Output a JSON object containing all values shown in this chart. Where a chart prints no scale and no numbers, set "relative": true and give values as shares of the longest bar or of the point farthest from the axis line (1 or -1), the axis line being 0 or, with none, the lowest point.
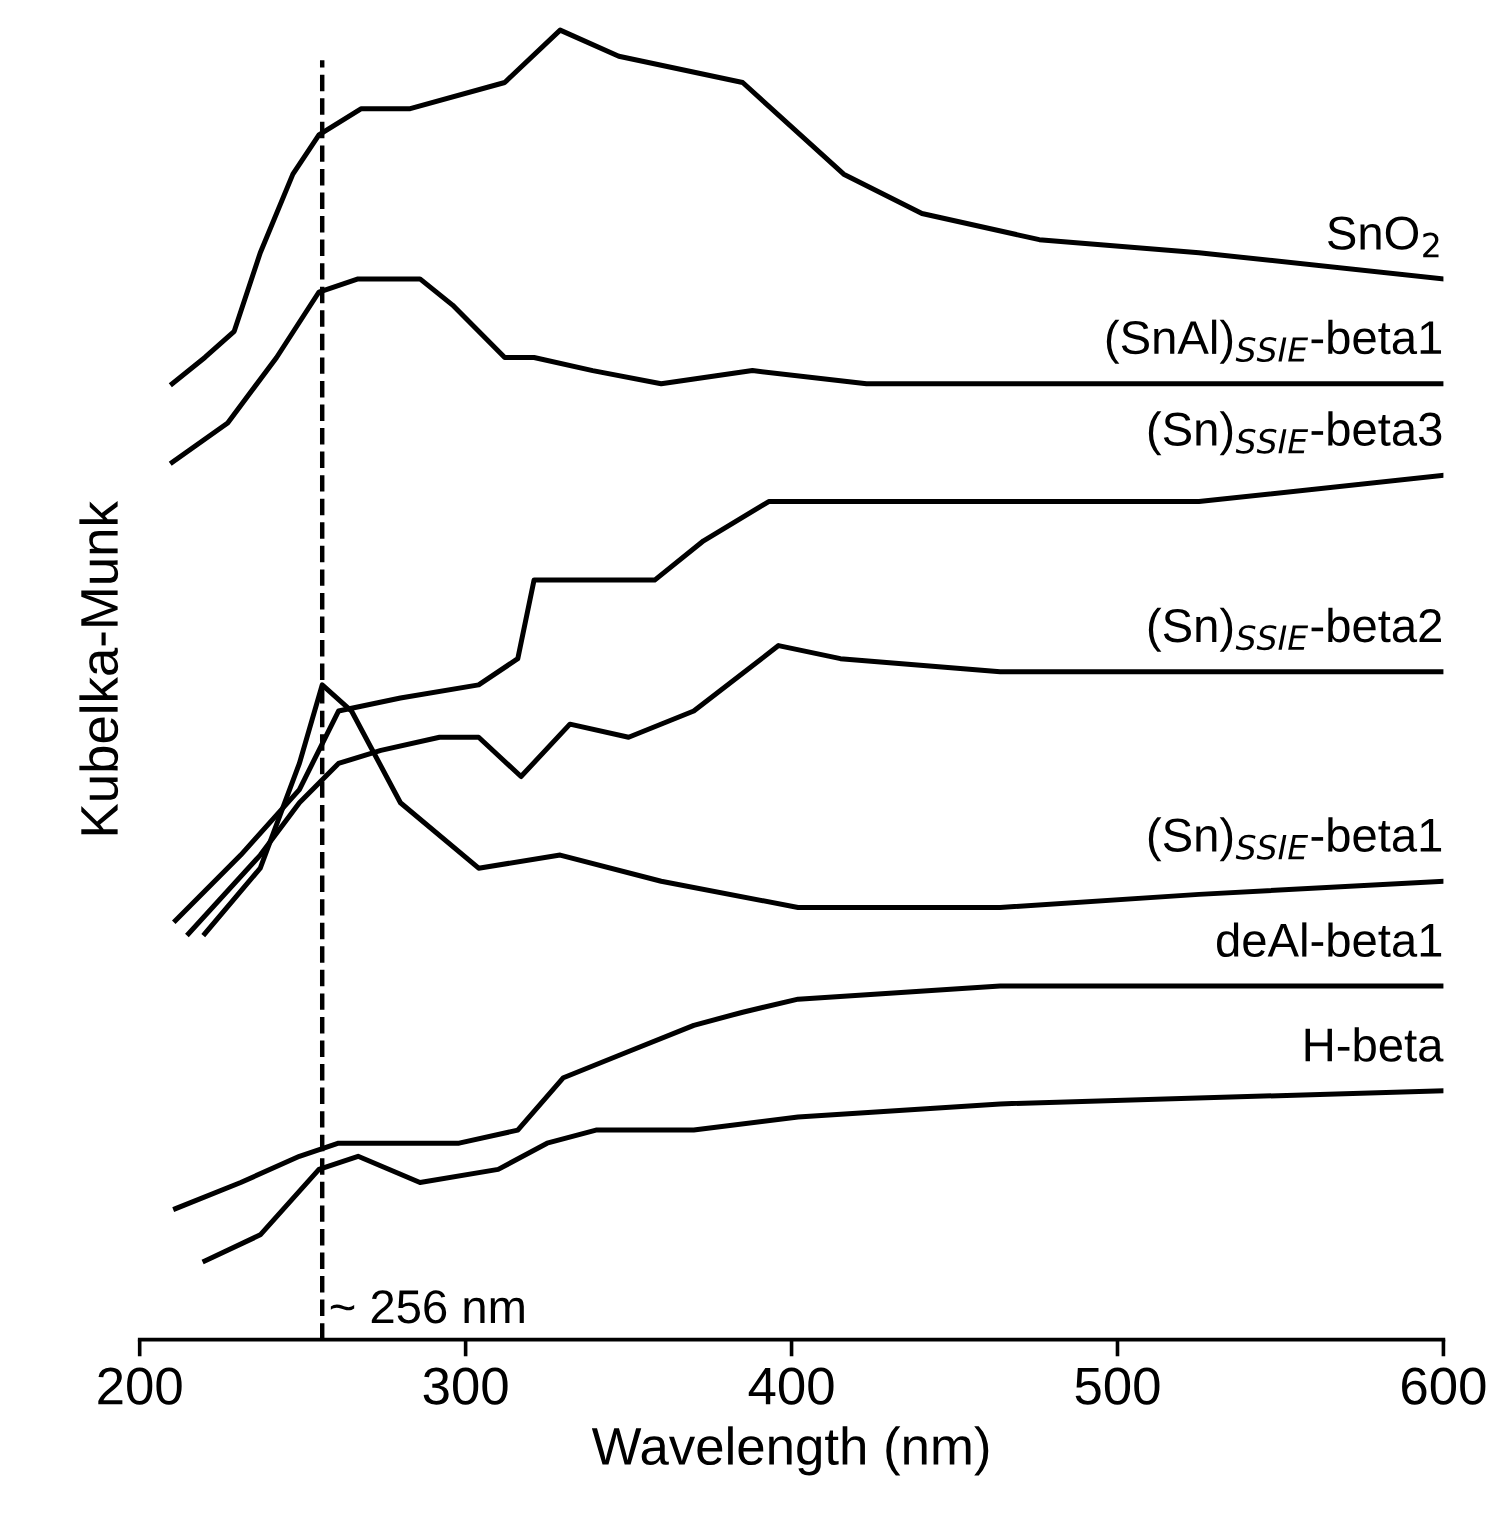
{
  "chart_data": {
    "type": "line",
    "relative": true,
    "xlabel": "Wavelength (nm)",
    "ylabel": "Kubelka-Munk",
    "xlim": [
      200,
      600
    ],
    "xticks": [
      200,
      300,
      400,
      500,
      600
    ],
    "tick_labels": "x",
    "grid": false,
    "legend": false,
    "line_style": "solid",
    "marker": "none",
    "ref_lines": [
      {
        "axis": "x",
        "value": 256,
        "label": "~ 256 nm",
        "line_style": "dashed",
        "color": "#000000"
      }
    ],
    "series": [
      {
        "name": "SnO$_{2}$",
        "color": "#000000",
        "x": [
          210,
          220,
          229,
          237,
          247,
          255,
          268,
          283,
          312,
          329,
          347,
          385,
          416,
          440,
          476,
          525,
          600
        ],
        "values": [
          0.73,
          0.75,
          0.77,
          0.83,
          0.89,
          0.92,
          0.94,
          0.94,
          0.96,
          1.0,
          0.98,
          0.96,
          0.89,
          0.86,
          0.84,
          0.83,
          0.81
        ]
      },
      {
        "name": "(SnAl)$_{SSIE}$-beta1",
        "color": "#000000",
        "x": [
          210,
          227,
          242,
          255,
          267,
          286,
          296,
          312,
          321,
          339,
          360,
          388,
          423,
          600
        ],
        "values": [
          0.67,
          0.7,
          0.75,
          0.8,
          0.81,
          0.81,
          0.79,
          0.75,
          0.75,
          0.74,
          0.73,
          0.74,
          0.73,
          0.73
        ]
      },
      {
        "name": "(Sn)$_{SSIE}$-beta3",
        "color": "#000000",
        "x": [
          211,
          231,
          249,
          261,
          280,
          304,
          316,
          321,
          332,
          358,
          373,
          393,
          423,
          464,
          525,
          600
        ],
        "values": [
          0.32,
          0.37,
          0.42,
          0.48,
          0.49,
          0.5,
          0.52,
          0.58,
          0.58,
          0.58,
          0.61,
          0.64,
          0.64,
          0.64,
          0.64,
          0.66
        ]
      },
      {
        "name": "(Sn)$_{SSIE}$-beta2",
        "color": "#000000",
        "x": [
          215,
          237,
          249,
          261,
          274,
          292,
          304,
          317,
          332,
          350,
          370,
          396,
          415,
          464,
          525,
          600
        ],
        "values": [
          0.31,
          0.37,
          0.41,
          0.44,
          0.45,
          0.46,
          0.46,
          0.43,
          0.47,
          0.46,
          0.48,
          0.53,
          0.52,
          0.51,
          0.51,
          0.51
        ]
      },
      {
        "name": "(Sn)$_{SSIE}$-beta1",
        "color": "#000000",
        "x": [
          220,
          237,
          249,
          256,
          265,
          280,
          304,
          329,
          360,
          402,
          464,
          525,
          600
        ],
        "values": [
          0.31,
          0.36,
          0.44,
          0.5,
          0.48,
          0.41,
          0.36,
          0.37,
          0.35,
          0.33,
          0.33,
          0.34,
          0.35
        ]
      },
      {
        "name": "deAl-beta1",
        "color": "#000000",
        "x": [
          211,
          231,
          249,
          261,
          280,
          298,
          316,
          330,
          350,
          370,
          385,
          402,
          464,
          600
        ],
        "values": [
          0.1,
          0.12,
          0.14,
          0.15,
          0.15,
          0.15,
          0.16,
          0.2,
          0.22,
          0.24,
          0.25,
          0.26,
          0.27,
          0.27
        ]
      },
      {
        "name": "H-beta",
        "color": "#000000",
        "x": [
          220,
          237,
          255,
          267,
          286,
          310,
          325,
          340,
          370,
          402,
          464,
          600
        ],
        "values": [
          0.06,
          0.08,
          0.13,
          0.14,
          0.12,
          0.13,
          0.15,
          0.16,
          0.16,
          0.17,
          0.18,
          0.19
        ]
      }
    ]
  }
}
